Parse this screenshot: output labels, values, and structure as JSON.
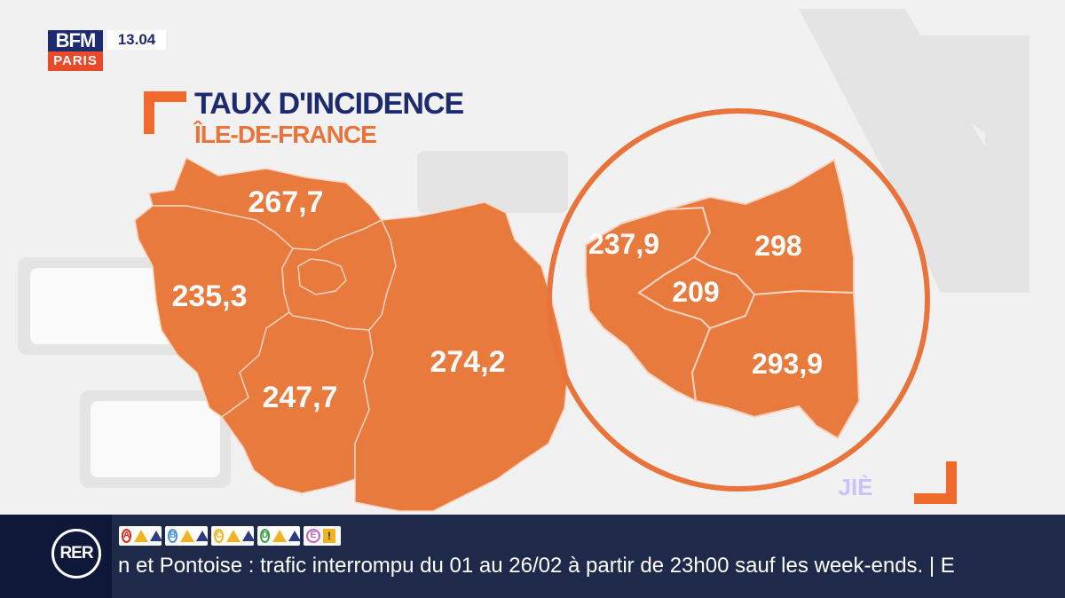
{
  "channel": {
    "logo_top": "BFM",
    "logo_bottom": "PARIS",
    "time": "13.04"
  },
  "graphic": {
    "title": "TAUX D'INCIDENCE",
    "subtitle": "ÎLE-DE-FRANCE",
    "corner_tag": "JIÈ"
  },
  "map": {
    "departments": [
      {
        "label": "267,7"
      },
      {
        "label": "235,3"
      },
      {
        "label": "247,7"
      },
      {
        "label": "274,2"
      }
    ],
    "inset": [
      {
        "label": "237,9"
      },
      {
        "label": "298"
      },
      {
        "label": "209"
      },
      {
        "label": "293,9"
      }
    ]
  },
  "ticker": {
    "badge": "RER",
    "lines": [
      {
        "letter": "A",
        "color": "#e2231a"
      },
      {
        "letter": "B",
        "color": "#4f8fd3"
      },
      {
        "letter": "C",
        "color": "#f2b323"
      },
      {
        "letter": "D",
        "color": "#3ca04a"
      },
      {
        "letter": "E",
        "color": "#c160b6"
      }
    ],
    "text": "n et Pontoise : trafic interrompu du 01 au 26/02 à partir de 23h00 sauf les week-ends. | E"
  },
  "colors": {
    "map_fill": "#e87a3e",
    "navy": "#1d2a6d",
    "orange_accent": "#e8743c",
    "ticker_bg": "#1f2a4a"
  }
}
